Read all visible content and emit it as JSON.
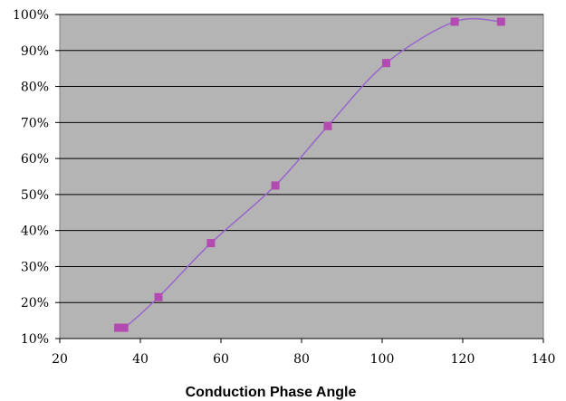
{
  "chart_data": {
    "type": "line",
    "title": "",
    "xlabel": "Conduction Phase Angle",
    "ylabel": "",
    "xlim": [
      20,
      140
    ],
    "ylim": [
      10,
      100
    ],
    "x_ticks": [
      20,
      40,
      60,
      80,
      100,
      120,
      140
    ],
    "x_tick_labels": [
      "20",
      "40",
      "60",
      "80",
      "100",
      "120",
      "140"
    ],
    "y_ticks": [
      10,
      20,
      30,
      40,
      50,
      60,
      70,
      80,
      90,
      100
    ],
    "y_tick_labels": [
      "10%",
      "20%",
      "30%",
      "40%",
      "50%",
      "60%",
      "70%",
      "80%",
      "90%",
      "100%"
    ],
    "grid": "horizontal",
    "legend": "none",
    "series": [
      {
        "x": [
          34.5,
          36,
          44.5,
          57.5,
          73.5,
          86.5,
          101,
          118,
          129.5
        ],
        "values": [
          13,
          13,
          21.5,
          36.5,
          52.5,
          69,
          86.5,
          98,
          98
        ],
        "smooth": true
      }
    ],
    "colors": {
      "plot_background": "#b4b4b4",
      "gridline": "#000000",
      "line": "#9966cc",
      "marker": "#b34ab2"
    }
  }
}
